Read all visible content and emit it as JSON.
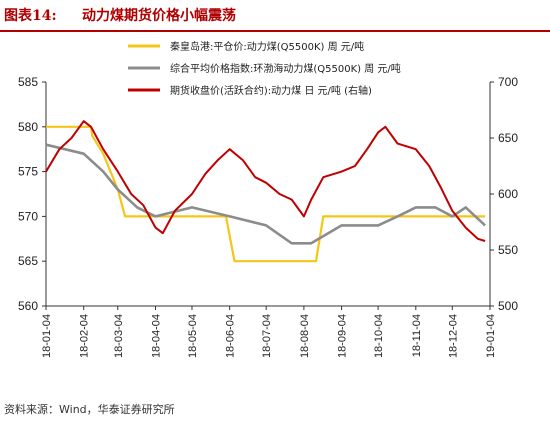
{
  "header": {
    "figure_label": "图表14:",
    "title": "动力煤期货价格小幅震荡"
  },
  "source": "资料来源：Wind，华泰证券研究所",
  "chart_data": {
    "type": "line",
    "title": "动力煤期货价格小幅震荡",
    "left_axis": {
      "min": 560,
      "max": 585,
      "ticks": [
        560,
        565,
        570,
        575,
        580,
        585
      ]
    },
    "right_axis": {
      "min": 500,
      "max": 700,
      "ticks": [
        500,
        550,
        600,
        650,
        700
      ]
    },
    "x_ticks": [
      "18-01-04",
      "18-02-04",
      "18-03-04",
      "18-04-04",
      "18-05-04",
      "18-06-04",
      "18-07-04",
      "18-08-04",
      "18-09-04",
      "18-10-04",
      "18-11-04",
      "18-12-04",
      "19-01-04"
    ],
    "legend_position": "top",
    "grid": false,
    "series": [
      {
        "name": "秦皇岛港:平仓价:动力煤(Q5500K) 周 元/吨",
        "axis": "left",
        "color": "#f5c518",
        "points": [
          [
            "18-01-04",
            580
          ],
          [
            "18-02-10",
            580
          ],
          [
            "18-02-11",
            579
          ],
          [
            "18-02-20",
            577
          ],
          [
            "18-03-04",
            573
          ],
          [
            "18-03-10",
            570
          ],
          [
            "18-06-01",
            570
          ],
          [
            "18-06-08",
            565
          ],
          [
            "18-08-14",
            565
          ],
          [
            "18-08-20",
            570
          ],
          [
            "18-12-31",
            570
          ]
        ]
      },
      {
        "name": "综合平均价格指数:环渤海动力煤(Q5500K) 周 元/吨",
        "axis": "left",
        "color": "#8c8c8c",
        "points": [
          [
            "18-01-04",
            578
          ],
          [
            "18-02-04",
            577
          ],
          [
            "18-02-20",
            575
          ],
          [
            "18-03-04",
            573
          ],
          [
            "18-03-20",
            571
          ],
          [
            "18-04-04",
            570
          ],
          [
            "18-05-04",
            571
          ],
          [
            "18-06-04",
            570
          ],
          [
            "18-07-04",
            569
          ],
          [
            "18-07-25",
            567
          ],
          [
            "18-08-10",
            567
          ],
          [
            "18-09-04",
            569
          ],
          [
            "18-10-04",
            569
          ],
          [
            "18-10-20",
            570
          ],
          [
            "18-11-04",
            571
          ],
          [
            "18-11-20",
            571
          ],
          [
            "18-12-04",
            570
          ],
          [
            "18-12-15",
            571
          ],
          [
            "18-12-31",
            569
          ]
        ]
      },
      {
        "name": "期货收盘价(活跃合约):动力煤 日 元/吨 (右轴)",
        "axis": "right",
        "color": "#c00000",
        "points": [
          [
            "18-01-04",
            620
          ],
          [
            "18-01-15",
            640
          ],
          [
            "18-01-25",
            650
          ],
          [
            "18-02-04",
            665
          ],
          [
            "18-02-10",
            660
          ],
          [
            "18-02-20",
            640
          ],
          [
            "18-03-04",
            620
          ],
          [
            "18-03-15",
            600
          ],
          [
            "18-03-25",
            590
          ],
          [
            "18-04-04",
            570
          ],
          [
            "18-04-10",
            565
          ],
          [
            "18-04-20",
            585
          ],
          [
            "18-05-04",
            600
          ],
          [
            "18-05-15",
            618
          ],
          [
            "18-05-25",
            630
          ],
          [
            "18-06-04",
            640
          ],
          [
            "18-06-15",
            630
          ],
          [
            "18-06-25",
            615
          ],
          [
            "18-07-04",
            610
          ],
          [
            "18-07-15",
            600
          ],
          [
            "18-07-25",
            595
          ],
          [
            "18-08-04",
            580
          ],
          [
            "18-08-10",
            595
          ],
          [
            "18-08-20",
            615
          ],
          [
            "18-09-04",
            620
          ],
          [
            "18-09-15",
            625
          ],
          [
            "18-09-25",
            640
          ],
          [
            "18-10-04",
            655
          ],
          [
            "18-10-10",
            660
          ],
          [
            "18-10-20",
            645
          ],
          [
            "18-11-04",
            640
          ],
          [
            "18-11-15",
            625
          ],
          [
            "18-11-25",
            605
          ],
          [
            "18-12-04",
            585
          ],
          [
            "18-12-15",
            570
          ],
          [
            "18-12-25",
            560
          ],
          [
            "18-12-31",
            558
          ]
        ]
      }
    ]
  }
}
